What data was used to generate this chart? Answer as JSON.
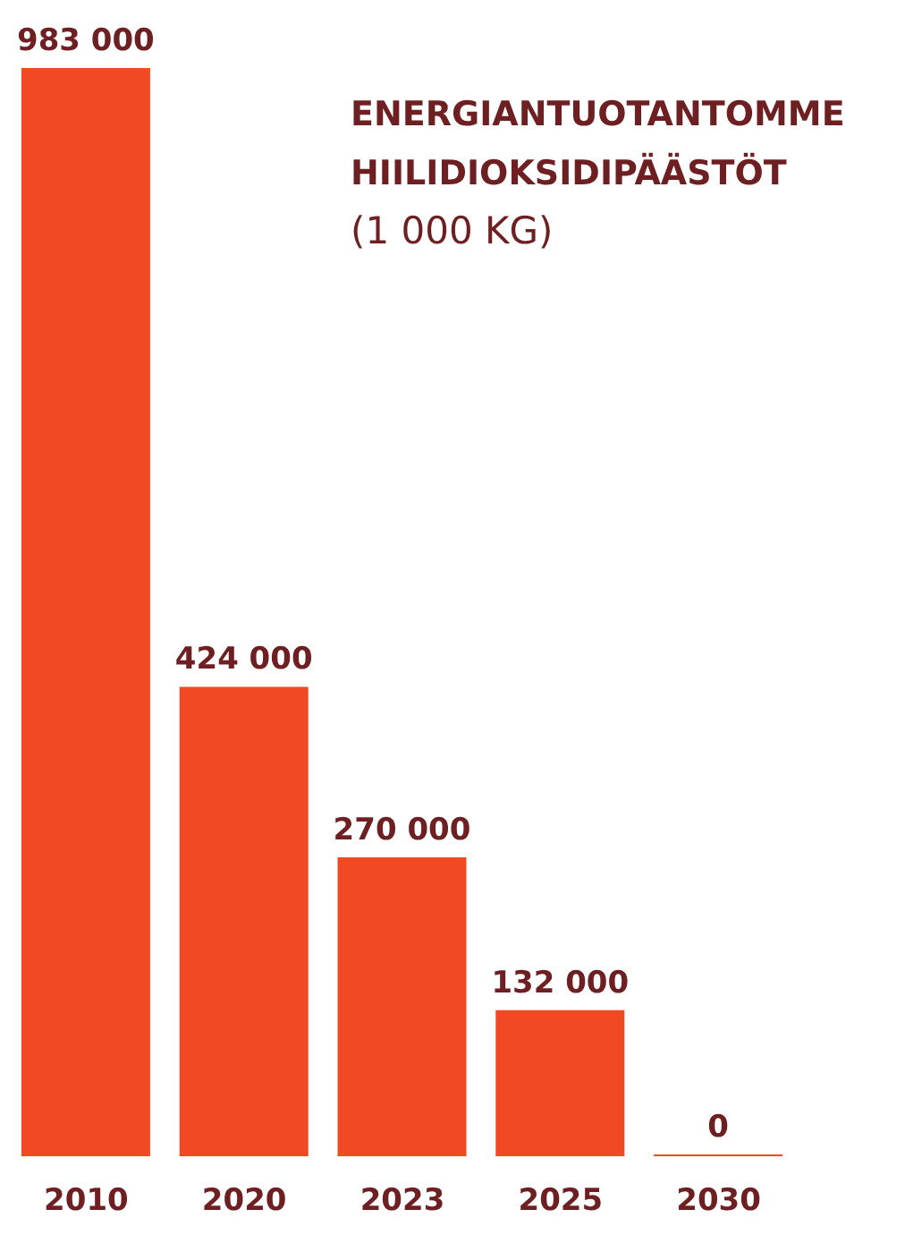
{
  "chart_data": {
    "type": "bar",
    "title": "ENERGIANTUOTANTOMME HIILIDIOKSIDIPÄÄSTÖT",
    "subtitle": "(1 000 KG)",
    "categories": [
      "2010",
      "2020",
      "2023",
      "2025",
      "2030"
    ],
    "values": [
      983000,
      424000,
      270000,
      132000,
      0
    ],
    "value_labels": [
      "983 000",
      "424 000",
      "270 000",
      "132 000",
      "0"
    ],
    "color": "#f04923",
    "grid": false
  }
}
